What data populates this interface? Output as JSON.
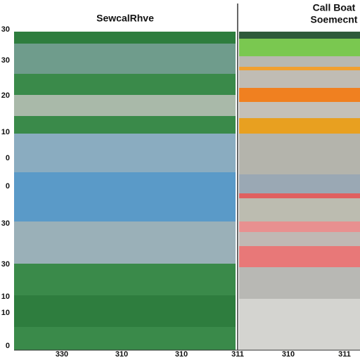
{
  "left_panel": {
    "title": "SewcalRhve",
    "axis_labels": [
      "30",
      "30",
      "20",
      "10",
      "0",
      "0",
      "30",
      "30",
      "10",
      "10",
      "0"
    ]
  },
  "right_panel": {
    "title_lines": [
      "Call Boat",
      "Soemecnt"
    ]
  },
  "bottom_labels": [
    "330",
    "310",
    "310",
    "311",
    "310",
    "311"
  ]
}
